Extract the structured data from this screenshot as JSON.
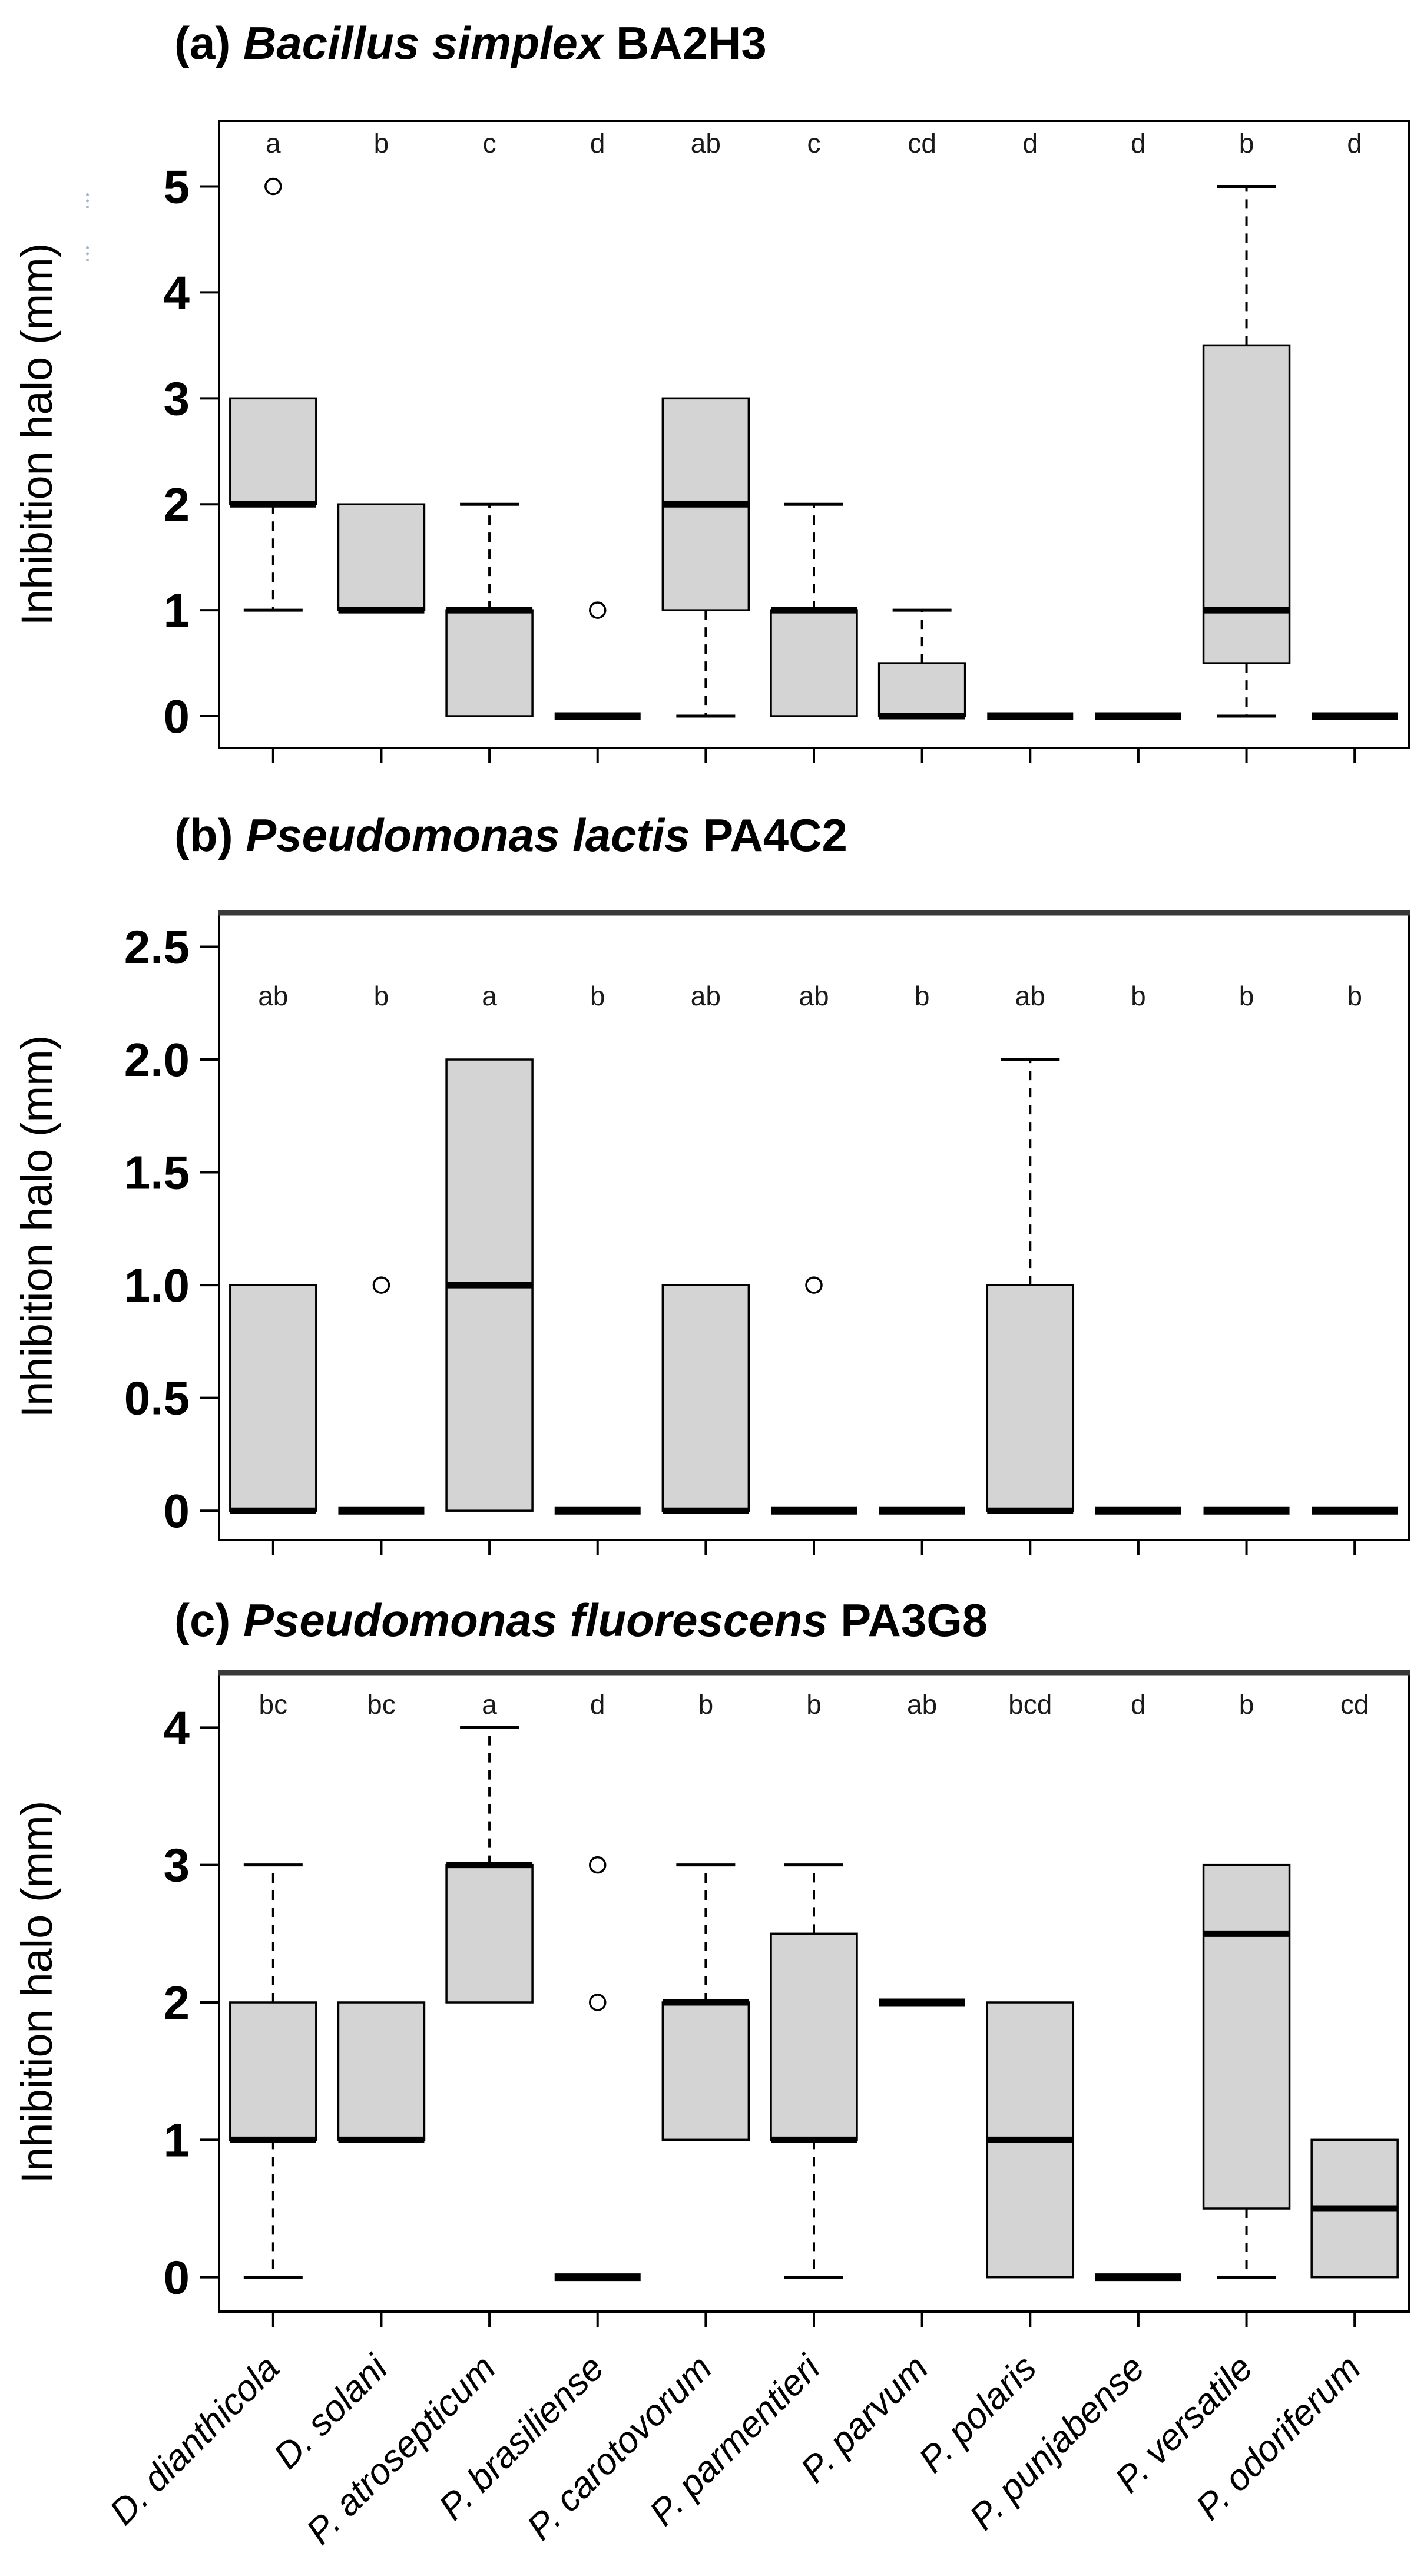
{
  "figure": {
    "ylabel": "Inhibition halo (mm)",
    "colors": {
      "box_fill": "#d4d4d4",
      "line": "#000000",
      "background": "#ffffff",
      "letter_color": "#1a1a1a"
    }
  },
  "chart_data": [
    {
      "type": "boxplot",
      "panel_id": "a",
      "title_prefix": "(a)",
      "title_species_italic": "Bacillus simplex",
      "title_strain": "BA2H3",
      "ylabel": "Inhibition halo (mm)",
      "ylim": [
        0,
        5
      ],
      "ytick_values": [
        0,
        1,
        2,
        3,
        4,
        5
      ],
      "ytick_labels": [
        "0",
        "1",
        "2",
        "3",
        "4",
        "5"
      ],
      "grid": false,
      "show_x_labels": false,
      "categories": [
        "D. dianthicola",
        "D. solani",
        "P. atrosepticum",
        "P. brasiliense",
        "P. carotovorum",
        "P. parmentieri",
        "P. parvum",
        "P. polaris",
        "P. punjabense",
        "P. versatile",
        "P. odoriferum"
      ],
      "significance_letters": [
        "a",
        "b",
        "c",
        "d",
        "ab",
        "c",
        "cd",
        "d",
        "d",
        "b",
        "d"
      ],
      "boxes": [
        {
          "median": 2,
          "q1": 2,
          "q3": 3,
          "whisker_low": 1,
          "whisker_high": null,
          "outliers": [
            5
          ]
        },
        {
          "median": 1,
          "q1": 1,
          "q3": 2,
          "whisker_low": null,
          "whisker_high": null,
          "outliers": []
        },
        {
          "median": 1,
          "q1": 0,
          "q3": 1,
          "whisker_low": null,
          "whisker_high": 2,
          "outliers": []
        },
        {
          "median": 0,
          "q1": 0,
          "q3": 0,
          "whisker_low": null,
          "whisker_high": null,
          "outliers": [
            1
          ]
        },
        {
          "median": 2,
          "q1": 1,
          "q3": 3,
          "whisker_low": 0,
          "whisker_high": null,
          "outliers": []
        },
        {
          "median": 1,
          "q1": 0,
          "q3": 1,
          "whisker_low": null,
          "whisker_high": 2,
          "outliers": []
        },
        {
          "median": 0,
          "q1": 0,
          "q3": 0.5,
          "whisker_low": null,
          "whisker_high": 1,
          "outliers": []
        },
        {
          "median": 0,
          "q1": 0,
          "q3": 0,
          "whisker_low": null,
          "whisker_high": null,
          "outliers": []
        },
        {
          "median": 0,
          "q1": 0,
          "q3": 0,
          "whisker_low": null,
          "whisker_high": null,
          "outliers": []
        },
        {
          "median": 1,
          "q1": 0.5,
          "q3": 3.5,
          "whisker_low": 0,
          "whisker_high": 5,
          "outliers": []
        },
        {
          "median": 0,
          "q1": 0,
          "q3": 0,
          "whisker_low": null,
          "whisker_high": null,
          "outliers": []
        }
      ]
    },
    {
      "type": "boxplot",
      "panel_id": "b",
      "title_prefix": "(b)",
      "title_species_italic": "Pseudomonas lactis",
      "title_strain": "PA4C2",
      "ylabel": "Inhibition halo (mm)",
      "ylim": [
        0,
        2.5
      ],
      "ytick_values": [
        0,
        0.5,
        1.0,
        1.5,
        2.0,
        2.5
      ],
      "ytick_labels": [
        "0",
        "0.5",
        "1.0",
        "1.5",
        "2.0",
        "2.5"
      ],
      "grid": false,
      "show_x_labels": false,
      "categories": [
        "D. dianthicola",
        "D. solani",
        "P. atrosepticum",
        "P. brasiliense",
        "P. carotovorum",
        "P. parmentieri",
        "P. parvum",
        "P. polaris",
        "P. punjabense",
        "P. versatile",
        "P. odoriferum"
      ],
      "significance_letters": [
        "ab",
        "b",
        "a",
        "b",
        "ab",
        "ab",
        "b",
        "ab",
        "b",
        "b",
        "b"
      ],
      "boxes": [
        {
          "median": 0,
          "q1": 0,
          "q3": 1,
          "whisker_low": null,
          "whisker_high": null,
          "outliers": []
        },
        {
          "median": 0,
          "q1": 0,
          "q3": 0,
          "whisker_low": null,
          "whisker_high": null,
          "outliers": [
            1
          ]
        },
        {
          "median": 1,
          "q1": 0,
          "q3": 2,
          "whisker_low": null,
          "whisker_high": null,
          "outliers": []
        },
        {
          "median": 0,
          "q1": 0,
          "q3": 0,
          "whisker_low": null,
          "whisker_high": null,
          "outliers": []
        },
        {
          "median": 0,
          "q1": 0,
          "q3": 1,
          "whisker_low": null,
          "whisker_high": null,
          "outliers": []
        },
        {
          "median": 0,
          "q1": 0,
          "q3": 0,
          "whisker_low": null,
          "whisker_high": null,
          "outliers": [
            1
          ]
        },
        {
          "median": 0,
          "q1": 0,
          "q3": 0,
          "whisker_low": null,
          "whisker_high": null,
          "outliers": []
        },
        {
          "median": 0,
          "q1": 0,
          "q3": 1,
          "whisker_low": null,
          "whisker_high": 2,
          "outliers": []
        },
        {
          "median": 0,
          "q1": 0,
          "q3": 0,
          "whisker_low": null,
          "whisker_high": null,
          "outliers": []
        },
        {
          "median": 0,
          "q1": 0,
          "q3": 0,
          "whisker_low": null,
          "whisker_high": null,
          "outliers": []
        },
        {
          "median": 0,
          "q1": 0,
          "q3": 0,
          "whisker_low": null,
          "whisker_high": null,
          "outliers": []
        }
      ]
    },
    {
      "type": "boxplot",
      "panel_id": "c",
      "title_prefix": "(c)",
      "title_species_italic": "Pseudomonas fluorescens",
      "title_strain": "PA3G8",
      "ylabel": "Inhibition halo (mm)",
      "ylim": [
        0,
        4
      ],
      "ytick_values": [
        0,
        1,
        2,
        3,
        4
      ],
      "ytick_labels": [
        "0",
        "1",
        "2",
        "3",
        "4"
      ],
      "grid": false,
      "show_x_labels": true,
      "categories": [
        "D. dianthicola",
        "D. solani",
        "P. atrosepticum",
        "P. brasiliense",
        "P. carotovorum",
        "P. parmentieri",
        "P. parvum",
        "P. polaris",
        "P. punjabense",
        "P. versatile",
        "P. odoriferum"
      ],
      "significance_letters": [
        "bc",
        "bc",
        "a",
        "d",
        "b",
        "b",
        "ab",
        "bcd",
        "d",
        "b",
        "cd"
      ],
      "boxes": [
        {
          "median": 1,
          "q1": 1,
          "q3": 2,
          "whisker_low": 0,
          "whisker_high": 3,
          "outliers": []
        },
        {
          "median": 1,
          "q1": 1,
          "q3": 2,
          "whisker_low": null,
          "whisker_high": null,
          "outliers": []
        },
        {
          "median": 3,
          "q1": 2,
          "q3": 3,
          "whisker_low": null,
          "whisker_high": 4,
          "outliers": []
        },
        {
          "median": 0,
          "q1": 0,
          "q3": 0,
          "whisker_low": null,
          "whisker_high": null,
          "outliers": [
            2,
            3
          ]
        },
        {
          "median": 2,
          "q1": 1,
          "q3": 2,
          "whisker_low": null,
          "whisker_high": 3,
          "outliers": []
        },
        {
          "median": 1,
          "q1": 1,
          "q3": 2.5,
          "whisker_low": 0,
          "whisker_high": 3,
          "outliers": []
        },
        {
          "median": 2,
          "q1": 2,
          "q3": 2,
          "whisker_low": null,
          "whisker_high": null,
          "outliers": []
        },
        {
          "median": 1,
          "q1": 0,
          "q3": 2,
          "whisker_low": null,
          "whisker_high": null,
          "outliers": []
        },
        {
          "median": 0,
          "q1": 0,
          "q3": 0,
          "whisker_low": null,
          "whisker_high": null,
          "outliers": []
        },
        {
          "median": 2.5,
          "q1": 0.5,
          "q3": 3,
          "whisker_low": 0,
          "whisker_high": null,
          "outliers": []
        },
        {
          "median": 0.5,
          "q1": 0,
          "q3": 1,
          "whisker_low": null,
          "whisker_high": null,
          "outliers": []
        }
      ]
    }
  ]
}
